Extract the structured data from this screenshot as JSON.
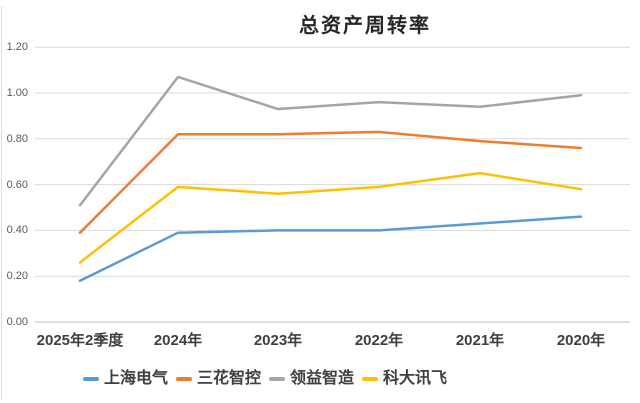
{
  "chart_data": {
    "type": "line",
    "title": "总资产周转率",
    "categories": [
      "2025年2季度",
      "2024年",
      "2023年",
      "2022年",
      "2021年",
      "2020年"
    ],
    "series": [
      {
        "name": "上海电气",
        "color": "#5B9BD5",
        "values": [
          0.18,
          0.39,
          0.4,
          0.4,
          0.43,
          0.46
        ]
      },
      {
        "name": "三花智控",
        "color": "#ED7D31",
        "values": [
          0.39,
          0.82,
          0.82,
          0.83,
          0.79,
          0.76
        ]
      },
      {
        "name": "领益智造",
        "color": "#A5A5A5",
        "values": [
          0.51,
          1.07,
          0.93,
          0.96,
          0.94,
          0.99
        ]
      },
      {
        "name": "科大讯飞",
        "color": "#FFC000",
        "values": [
          0.26,
          0.59,
          0.56,
          0.59,
          0.65,
          0.58
        ]
      }
    ],
    "y_ticks": [
      "1.20",
      "1.00",
      "0.80",
      "0.60",
      "0.40",
      "0.20",
      "0.00"
    ],
    "ylim": [
      0,
      1.2
    ],
    "grid": true,
    "legend_position": "bottom",
    "colors": {
      "grid": "#d9d9d9",
      "axis": "#bfbfbf",
      "tick_text": "#595959",
      "label_text": "#3f3f3f",
      "title_text": "#262626",
      "background": "#ffffff",
      "border": "#dcdcdc"
    }
  }
}
